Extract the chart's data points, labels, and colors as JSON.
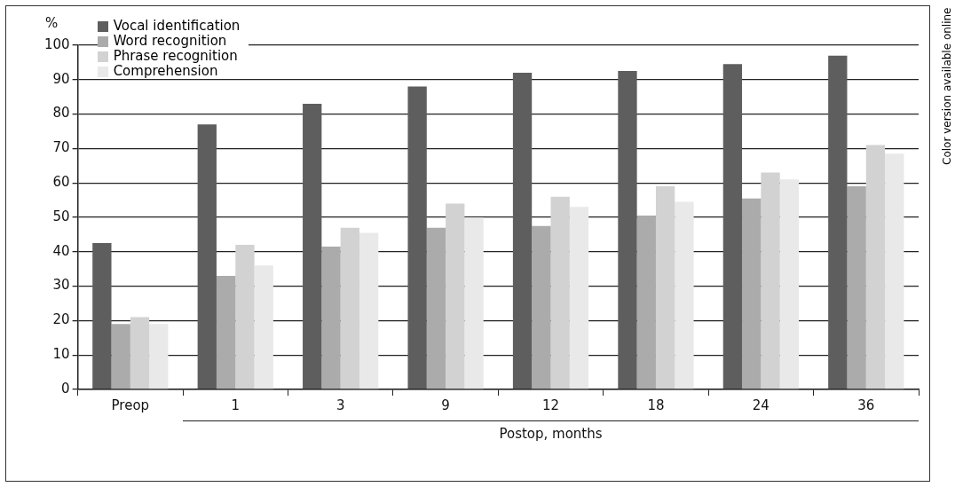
{
  "chart_data": {
    "type": "bar",
    "ylabel": "%",
    "xlabel": "Postop, months",
    "categories": [
      "Preop",
      "1",
      "3",
      "9",
      "12",
      "18",
      "24",
      "36"
    ],
    "series": [
      {
        "name": "Vocal identification",
        "color": "#5e5e5e",
        "values": [
          42.5,
          77,
          83,
          88,
          92,
          92.5,
          94.5,
          97
        ]
      },
      {
        "name": "Word recognition",
        "color": "#ababab",
        "values": [
          19,
          33,
          41.5,
          47,
          47.5,
          50.5,
          55.5,
          59
        ]
      },
      {
        "name": "Phrase recognition",
        "color": "#d2d2d2",
        "values": [
          21,
          42,
          47,
          54,
          56,
          59,
          63,
          71
        ]
      },
      {
        "name": "Comprehension",
        "color": "#e9e9e9",
        "values": [
          19,
          36,
          45.5,
          50,
          53,
          54.5,
          61,
          68.5
        ]
      }
    ],
    "ylim": [
      0,
      100
    ],
    "yticks": [
      0,
      10,
      20,
      30,
      40,
      50,
      60,
      70,
      80,
      90,
      100
    ],
    "grid": "y",
    "legend": "top left",
    "annotations": [
      "Color version available online"
    ]
  }
}
